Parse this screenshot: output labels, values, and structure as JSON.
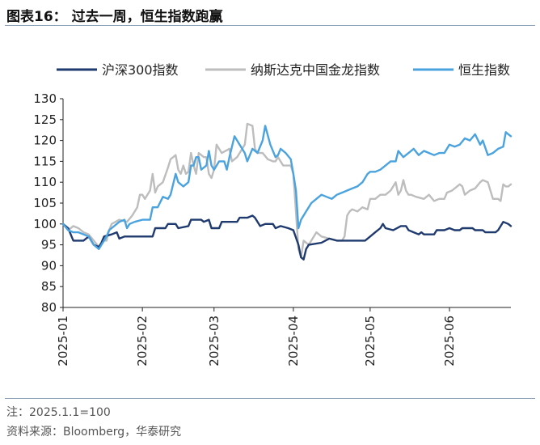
{
  "header": {
    "title": "图表16：  过去一周，恒生指数跑赢"
  },
  "footer": {
    "note": "注：2025.1.1=100",
    "source": "资料来源：Bloomberg，华泰研究"
  },
  "chart_data": {
    "type": "line",
    "title": "",
    "xlabel": "",
    "ylabel": "",
    "ylim": [
      80,
      130
    ],
    "yticks": [
      "130",
      "125",
      "120",
      "115",
      "110",
      "105",
      "100",
      "95",
      "90",
      "85",
      "80"
    ],
    "xlim": [
      1,
      176
    ],
    "xticks": [
      {
        "day": 1,
        "label": "2025-01"
      },
      {
        "day": 32,
        "label": "2025-02"
      },
      {
        "day": 60,
        "label": "2025-03"
      },
      {
        "day": 91,
        "label": "2025-04"
      },
      {
        "day": 121,
        "label": "2025-05"
      },
      {
        "day": 152,
        "label": "2025-06"
      }
    ],
    "legend_position": "top",
    "series": [
      {
        "name": "沪深300指数",
        "color": "#1f3a6e",
        "points": [
          [
            1,
            100
          ],
          [
            3,
            99
          ],
          [
            5,
            96
          ],
          [
            9,
            96
          ],
          [
            11,
            97
          ],
          [
            13,
            95
          ],
          [
            15,
            94.5
          ],
          [
            16,
            95.5
          ],
          [
            17,
            97
          ],
          [
            20,
            97.5
          ],
          [
            22,
            98
          ],
          [
            23,
            96.5
          ],
          [
            25,
            97
          ],
          [
            27,
            97
          ],
          [
            32,
            97
          ],
          [
            36,
            97
          ],
          [
            37,
            99
          ],
          [
            41,
            99
          ],
          [
            42,
            100
          ],
          [
            45,
            100
          ],
          [
            46,
            99
          ],
          [
            50,
            99.5
          ],
          [
            51,
            101
          ],
          [
            55,
            101
          ],
          [
            56,
            100.5
          ],
          [
            58,
            101
          ],
          [
            59,
            99
          ],
          [
            62,
            99
          ],
          [
            63,
            100.5
          ],
          [
            69,
            100.5
          ],
          [
            70,
            101.5
          ],
          [
            73,
            101.5
          ],
          [
            75,
            102
          ],
          [
            76,
            101.5
          ],
          [
            78,
            99.5
          ],
          [
            80,
            100
          ],
          [
            83,
            100
          ],
          [
            84,
            99
          ],
          [
            86,
            99.5
          ],
          [
            89,
            99
          ],
          [
            91,
            98.5
          ],
          [
            93,
            95
          ],
          [
            94,
            92
          ],
          [
            95,
            91.5
          ],
          [
            96,
            94
          ],
          [
            97,
            95
          ],
          [
            102,
            95.5
          ],
          [
            105,
            96.5
          ],
          [
            108,
            96
          ],
          [
            112,
            96
          ],
          [
            119,
            96
          ],
          [
            120,
            96.5
          ],
          [
            121,
            97
          ],
          [
            123,
            98
          ],
          [
            125,
            99
          ],
          [
            126,
            100
          ],
          [
            127,
            99
          ],
          [
            130,
            98.5
          ],
          [
            133,
            99.5
          ],
          [
            135,
            99.5
          ],
          [
            136,
            98.5
          ],
          [
            138,
            98
          ],
          [
            140,
            97.5
          ],
          [
            141,
            98
          ],
          [
            142,
            97.5
          ],
          [
            146,
            97.5
          ],
          [
            147,
            98.5
          ],
          [
            150,
            98.5
          ],
          [
            152,
            99
          ],
          [
            154,
            98.5
          ],
          [
            156,
            98.5
          ],
          [
            157,
            99
          ],
          [
            161,
            99
          ],
          [
            162,
            98.5
          ],
          [
            165,
            98.5
          ],
          [
            166,
            98
          ],
          [
            170,
            98
          ],
          [
            171,
            98.5
          ],
          [
            173,
            100.5
          ],
          [
            175,
            100
          ],
          [
            176,
            99.5
          ]
        ]
      },
      {
        "name": "纳斯达克中国金龙指数",
        "color": "#bdbdbd",
        "points": [
          [
            1,
            100
          ],
          [
            3,
            98.5
          ],
          [
            5,
            99.5
          ],
          [
            7,
            99
          ],
          [
            9,
            98
          ],
          [
            11,
            97.5
          ],
          [
            13,
            96
          ],
          [
            15,
            94.5
          ],
          [
            17,
            96
          ],
          [
            18,
            96
          ],
          [
            19,
            98.5
          ],
          [
            20,
            100
          ],
          [
            23,
            101
          ],
          [
            26,
            100.5
          ],
          [
            28,
            102
          ],
          [
            30,
            104
          ],
          [
            31,
            107
          ],
          [
            32,
            107
          ],
          [
            33,
            106
          ],
          [
            35,
            108
          ],
          [
            36,
            112
          ],
          [
            37,
            107.5
          ],
          [
            38,
            109
          ],
          [
            40,
            110
          ],
          [
            42,
            113.5
          ],
          [
            43,
            115.5
          ],
          [
            45,
            116.5
          ],
          [
            46,
            113
          ],
          [
            47,
            112
          ],
          [
            48,
            114
          ],
          [
            49,
            112
          ],
          [
            50,
            112.5
          ],
          [
            51,
            117
          ],
          [
            52,
            114
          ],
          [
            53,
            112
          ],
          [
            54,
            117
          ],
          [
            56,
            116
          ],
          [
            57,
            116
          ],
          [
            58,
            112
          ],
          [
            59,
            111
          ],
          [
            60,
            113
          ],
          [
            61,
            119
          ],
          [
            63,
            117
          ],
          [
            66,
            118
          ],
          [
            67,
            115
          ],
          [
            69,
            116
          ],
          [
            72,
            119
          ],
          [
            73,
            124
          ],
          [
            75,
            123.5
          ],
          [
            76,
            118
          ],
          [
            77,
            117
          ],
          [
            79,
            117
          ],
          [
            81,
            115.5
          ],
          [
            83,
            115
          ],
          [
            84,
            115
          ],
          [
            85,
            116
          ],
          [
            87,
            114
          ],
          [
            90,
            114
          ],
          [
            91,
            112
          ],
          [
            93,
            94
          ],
          [
            94,
            92
          ],
          [
            95,
            96
          ],
          [
            97,
            95
          ],
          [
            100,
            98
          ],
          [
            102,
            97
          ],
          [
            105,
            96.5
          ],
          [
            108,
            96
          ],
          [
            110,
            96
          ],
          [
            111,
            97
          ],
          [
            112,
            102
          ],
          [
            113,
            103
          ],
          [
            114,
            103.5
          ],
          [
            116,
            103
          ],
          [
            118,
            104
          ],
          [
            120,
            103.5
          ],
          [
            121,
            106
          ],
          [
            123,
            106
          ],
          [
            125,
            107
          ],
          [
            127,
            107
          ],
          [
            129,
            108
          ],
          [
            130,
            109
          ],
          [
            131,
            110
          ],
          [
            132,
            107
          ],
          [
            133,
            108
          ],
          [
            134,
            110.5
          ],
          [
            135,
            108
          ],
          [
            136,
            107
          ],
          [
            137,
            107
          ],
          [
            139,
            106.5
          ],
          [
            142,
            106
          ],
          [
            144,
            107
          ],
          [
            146,
            105.5
          ],
          [
            148,
            106
          ],
          [
            150,
            106
          ],
          [
            151,
            107.5
          ],
          [
            153,
            108
          ],
          [
            156,
            109.5
          ],
          [
            157,
            109
          ],
          [
            158,
            107
          ],
          [
            160,
            108
          ],
          [
            162,
            108.5
          ],
          [
            164,
            110
          ],
          [
            165,
            110.5
          ],
          [
            167,
            110
          ],
          [
            169,
            106
          ],
          [
            171,
            106
          ],
          [
            172,
            105.5
          ],
          [
            173,
            109.5
          ],
          [
            174,
            109
          ],
          [
            175,
            109
          ],
          [
            176,
            109.5
          ]
        ]
      },
      {
        "name": "恒生指数",
        "color": "#4aa3df",
        "points": [
          [
            1,
            100
          ],
          [
            3,
            98.5
          ],
          [
            5,
            98
          ],
          [
            7,
            98
          ],
          [
            9,
            97.5
          ],
          [
            11,
            97
          ],
          [
            13,
            95
          ],
          [
            15,
            94
          ],
          [
            17,
            96
          ],
          [
            18,
            97
          ],
          [
            19,
            98.5
          ],
          [
            20,
            99
          ],
          [
            23,
            100.5
          ],
          [
            25,
            101
          ],
          [
            26,
            99
          ],
          [
            27,
            100
          ],
          [
            29,
            100.5
          ],
          [
            32,
            101
          ],
          [
            35,
            101
          ],
          [
            36,
            104
          ],
          [
            38,
            104
          ],
          [
            40,
            106.5
          ],
          [
            42,
            106
          ],
          [
            43,
            107
          ],
          [
            45,
            112
          ],
          [
            46,
            110
          ],
          [
            48,
            109
          ],
          [
            50,
            110
          ],
          [
            51,
            114
          ],
          [
            52,
            114
          ],
          [
            53,
            116
          ],
          [
            54,
            116
          ],
          [
            55,
            113
          ],
          [
            57,
            114
          ],
          [
            58,
            117.5
          ],
          [
            59,
            114
          ],
          [
            60,
            113
          ],
          [
            62,
            115
          ],
          [
            64,
            115
          ],
          [
            65,
            113
          ],
          [
            66,
            116
          ],
          [
            68,
            121
          ],
          [
            70,
            119
          ],
          [
            72,
            117
          ],
          [
            73,
            115
          ],
          [
            75,
            118
          ],
          [
            77,
            117
          ],
          [
            79,
            120
          ],
          [
            80,
            123.5
          ],
          [
            82,
            119
          ],
          [
            84,
            116
          ],
          [
            85,
            116.5
          ],
          [
            86,
            118
          ],
          [
            88,
            117
          ],
          [
            90,
            115.5
          ],
          [
            91,
            112
          ],
          [
            92,
            108
          ],
          [
            93,
            99
          ],
          [
            94,
            101
          ],
          [
            96,
            103
          ],
          [
            98,
            105
          ],
          [
            100,
            106
          ],
          [
            102,
            107
          ],
          [
            104,
            106.5
          ],
          [
            106,
            106
          ],
          [
            108,
            107
          ],
          [
            110,
            107.5
          ],
          [
            112,
            108
          ],
          [
            114,
            108.5
          ],
          [
            116,
            109
          ],
          [
            118,
            110
          ],
          [
            120,
            112
          ],
          [
            121,
            112.5
          ],
          [
            123,
            112.5
          ],
          [
            125,
            113
          ],
          [
            127,
            114
          ],
          [
            129,
            115
          ],
          [
            131,
            115
          ],
          [
            132,
            117.5
          ],
          [
            134,
            116
          ],
          [
            136,
            117
          ],
          [
            138,
            118
          ],
          [
            140,
            116.5
          ],
          [
            142,
            117.5
          ],
          [
            144,
            117
          ],
          [
            146,
            116.5
          ],
          [
            148,
            117
          ],
          [
            150,
            117
          ],
          [
            152,
            119
          ],
          [
            154,
            118.5
          ],
          [
            156,
            119
          ],
          [
            158,
            120.5
          ],
          [
            160,
            120
          ],
          [
            162,
            121.5
          ],
          [
            164,
            119
          ],
          [
            165,
            120
          ],
          [
            167,
            116.5
          ],
          [
            169,
            117
          ],
          [
            171,
            118
          ],
          [
            173,
            118.5
          ],
          [
            174,
            122
          ],
          [
            175,
            121.5
          ],
          [
            176,
            121
          ]
        ]
      }
    ]
  }
}
